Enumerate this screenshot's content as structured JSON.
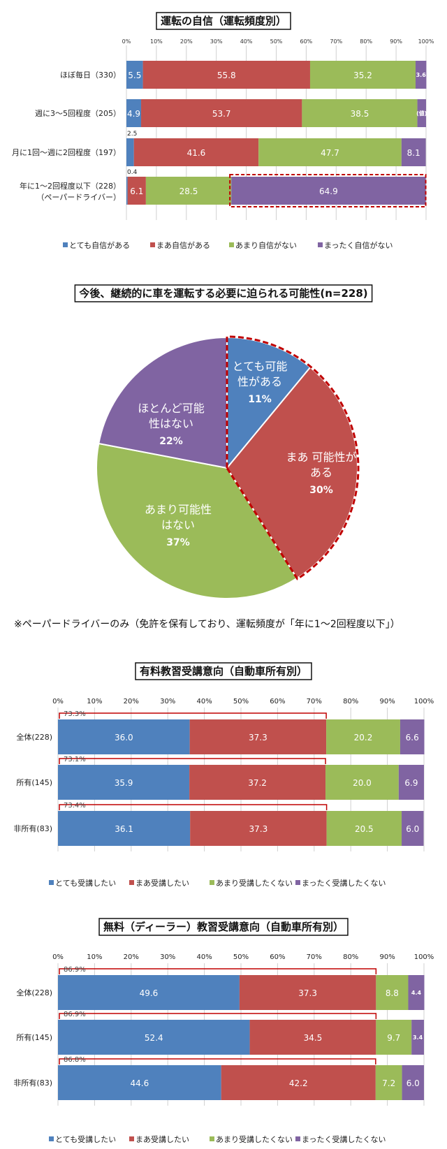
{
  "colors": {
    "c1": "#4f81bd",
    "c2": "#c0504d",
    "c3": "#9bbb59",
    "c4": "#8064a2",
    "highlight": "#c00000"
  },
  "chart_data": [
    {
      "type": "bar",
      "orientation": "horizontal-stacked",
      "title": "運転の自信（運転頻度別）",
      "ticks": [
        "0%",
        "10%",
        "20%",
        "30%",
        "40%",
        "50%",
        "60%",
        "70%",
        "80%",
        "90%",
        "100%"
      ],
      "categories": [
        "ほぼ毎日（330）",
        "週に3～5回程度（205）",
        "月に1回～週に2回程度（197）",
        "年に1～2回程度以下（228）"
      ],
      "category_sub": [
        "",
        "",
        "",
        "（ペーパードライバー）"
      ],
      "series": [
        {
          "name": "とても自信がある",
          "color": "#4f81bd",
          "values": [
            5.5,
            4.9,
            2.5,
            0.4
          ],
          "labels": [
            "5.5",
            "4.9",
            "2.5",
            "0.4"
          ]
        },
        {
          "name": "まあ自信がある",
          "color": "#c0504d",
          "values": [
            55.8,
            53.7,
            41.6,
            6.1
          ],
          "labels": [
            "55.8",
            "53.7",
            "41.6",
            "6.1"
          ]
        },
        {
          "name": "あまり自信がない",
          "color": "#9bbb59",
          "values": [
            35.2,
            38.5,
            47.7,
            28.5
          ],
          "labels": [
            "35.2",
            "38.5",
            "47.7",
            "28.5"
          ]
        },
        {
          "name": "まったく自信がない",
          "color": "#8064a2",
          "values": [
            3.6,
            2.9,
            8.1,
            64.9
          ],
          "labels": [
            "3.6",
            "(値)",
            "8.1",
            "64.9"
          ]
        }
      ],
      "highlight": {
        "category_index": 3,
        "series_index": 3
      }
    },
    {
      "type": "pie",
      "title": "今後、継続的に車を運転する必要に迫られる可能性(n=228)",
      "slices": [
        {
          "name": "とても可能性がある",
          "value": 11,
          "label": "11%",
          "color": "#4f81bd"
        },
        {
          "name": "まあ可能性がある",
          "value": 30,
          "label": "30%",
          "color": "#c0504d"
        },
        {
          "name": "あまり可能性はない",
          "value": 37,
          "label": "37%",
          "color": "#9bbb59"
        },
        {
          "name": "ほとんど可能性はない",
          "value": 22,
          "label": "22%",
          "color": "#8064a2"
        }
      ],
      "slice_text": [
        [
          "とても可能",
          "性がある"
        ],
        [
          "まあ 可能性が",
          "ある"
        ],
        [
          "あまり可能性",
          "はない"
        ],
        [
          "ほとんど可能",
          "性はない"
        ]
      ],
      "note": "※ペーパードライバーのみ（免許を保有しており、運転頻度が「年に1～2回程度以下」）"
    },
    {
      "type": "bar",
      "orientation": "horizontal-stacked",
      "title": "有料教習受講意向（自動車所有別）",
      "ticks": [
        "0%",
        "10%",
        "20%",
        "30%",
        "40%",
        "50%",
        "60%",
        "70%",
        "80%",
        "90%",
        "100%"
      ],
      "categories": [
        "全体(228)",
        "所有(145)",
        "非所有(83)"
      ],
      "bracket_labels": [
        "73.3%",
        "73.1%",
        "73.4%"
      ],
      "series": [
        {
          "name": "とても受講したい",
          "color": "#4f81bd",
          "values": [
            36.0,
            35.9,
            36.1
          ],
          "labels": [
            "36.0",
            "35.9",
            "36.1"
          ]
        },
        {
          "name": "まあ受講したい",
          "color": "#c0504d",
          "values": [
            37.3,
            37.2,
            37.3
          ],
          "labels": [
            "37.3",
            "37.2",
            "37.3"
          ]
        },
        {
          "name": "あまり受講したくない",
          "color": "#9bbb59",
          "values": [
            20.2,
            20.0,
            20.5
          ],
          "labels": [
            "20.2",
            "20.0",
            "20.5"
          ]
        },
        {
          "name": "まったく受講したくない",
          "color": "#8064a2",
          "values": [
            6.6,
            6.9,
            6.0
          ],
          "labels": [
            "6.6",
            "6.9",
            "6.0"
          ]
        }
      ]
    },
    {
      "type": "bar",
      "orientation": "horizontal-stacked",
      "title": "無料（ディーラー）教習受講意向（自動車所有別）",
      "ticks": [
        "0%",
        "10%",
        "20%",
        "30%",
        "40%",
        "50%",
        "60%",
        "70%",
        "80%",
        "90%",
        "100%"
      ],
      "categories": [
        "全体(228)",
        "所有(145)",
        "非所有(83)"
      ],
      "bracket_labels": [
        "86.9%",
        "86.9%",
        "86.8%"
      ],
      "series": [
        {
          "name": "とても受講したい",
          "color": "#4f81bd",
          "values": [
            49.6,
            52.4,
            44.6
          ],
          "labels": [
            "49.6",
            "52.4",
            "44.6"
          ]
        },
        {
          "name": "まあ受講したい",
          "color": "#c0504d",
          "values": [
            37.3,
            34.5,
            42.2
          ],
          "labels": [
            "37.3",
            "34.5",
            "42.2"
          ]
        },
        {
          "name": "あまり受講したくない",
          "color": "#9bbb59",
          "values": [
            8.8,
            9.7,
            7.2
          ],
          "labels": [
            "8.8",
            "9.7",
            "7.2"
          ]
        },
        {
          "name": "まったく受講したくない",
          "color": "#8064a2",
          "values": [
            4.4,
            3.4,
            6.0
          ],
          "labels": [
            "4.4",
            "3.4",
            "6.0"
          ]
        }
      ],
      "note": "※ペーパードライバーのみ（免許を保有しており、運転頻度が「年に1～2回程度以下」）"
    }
  ]
}
